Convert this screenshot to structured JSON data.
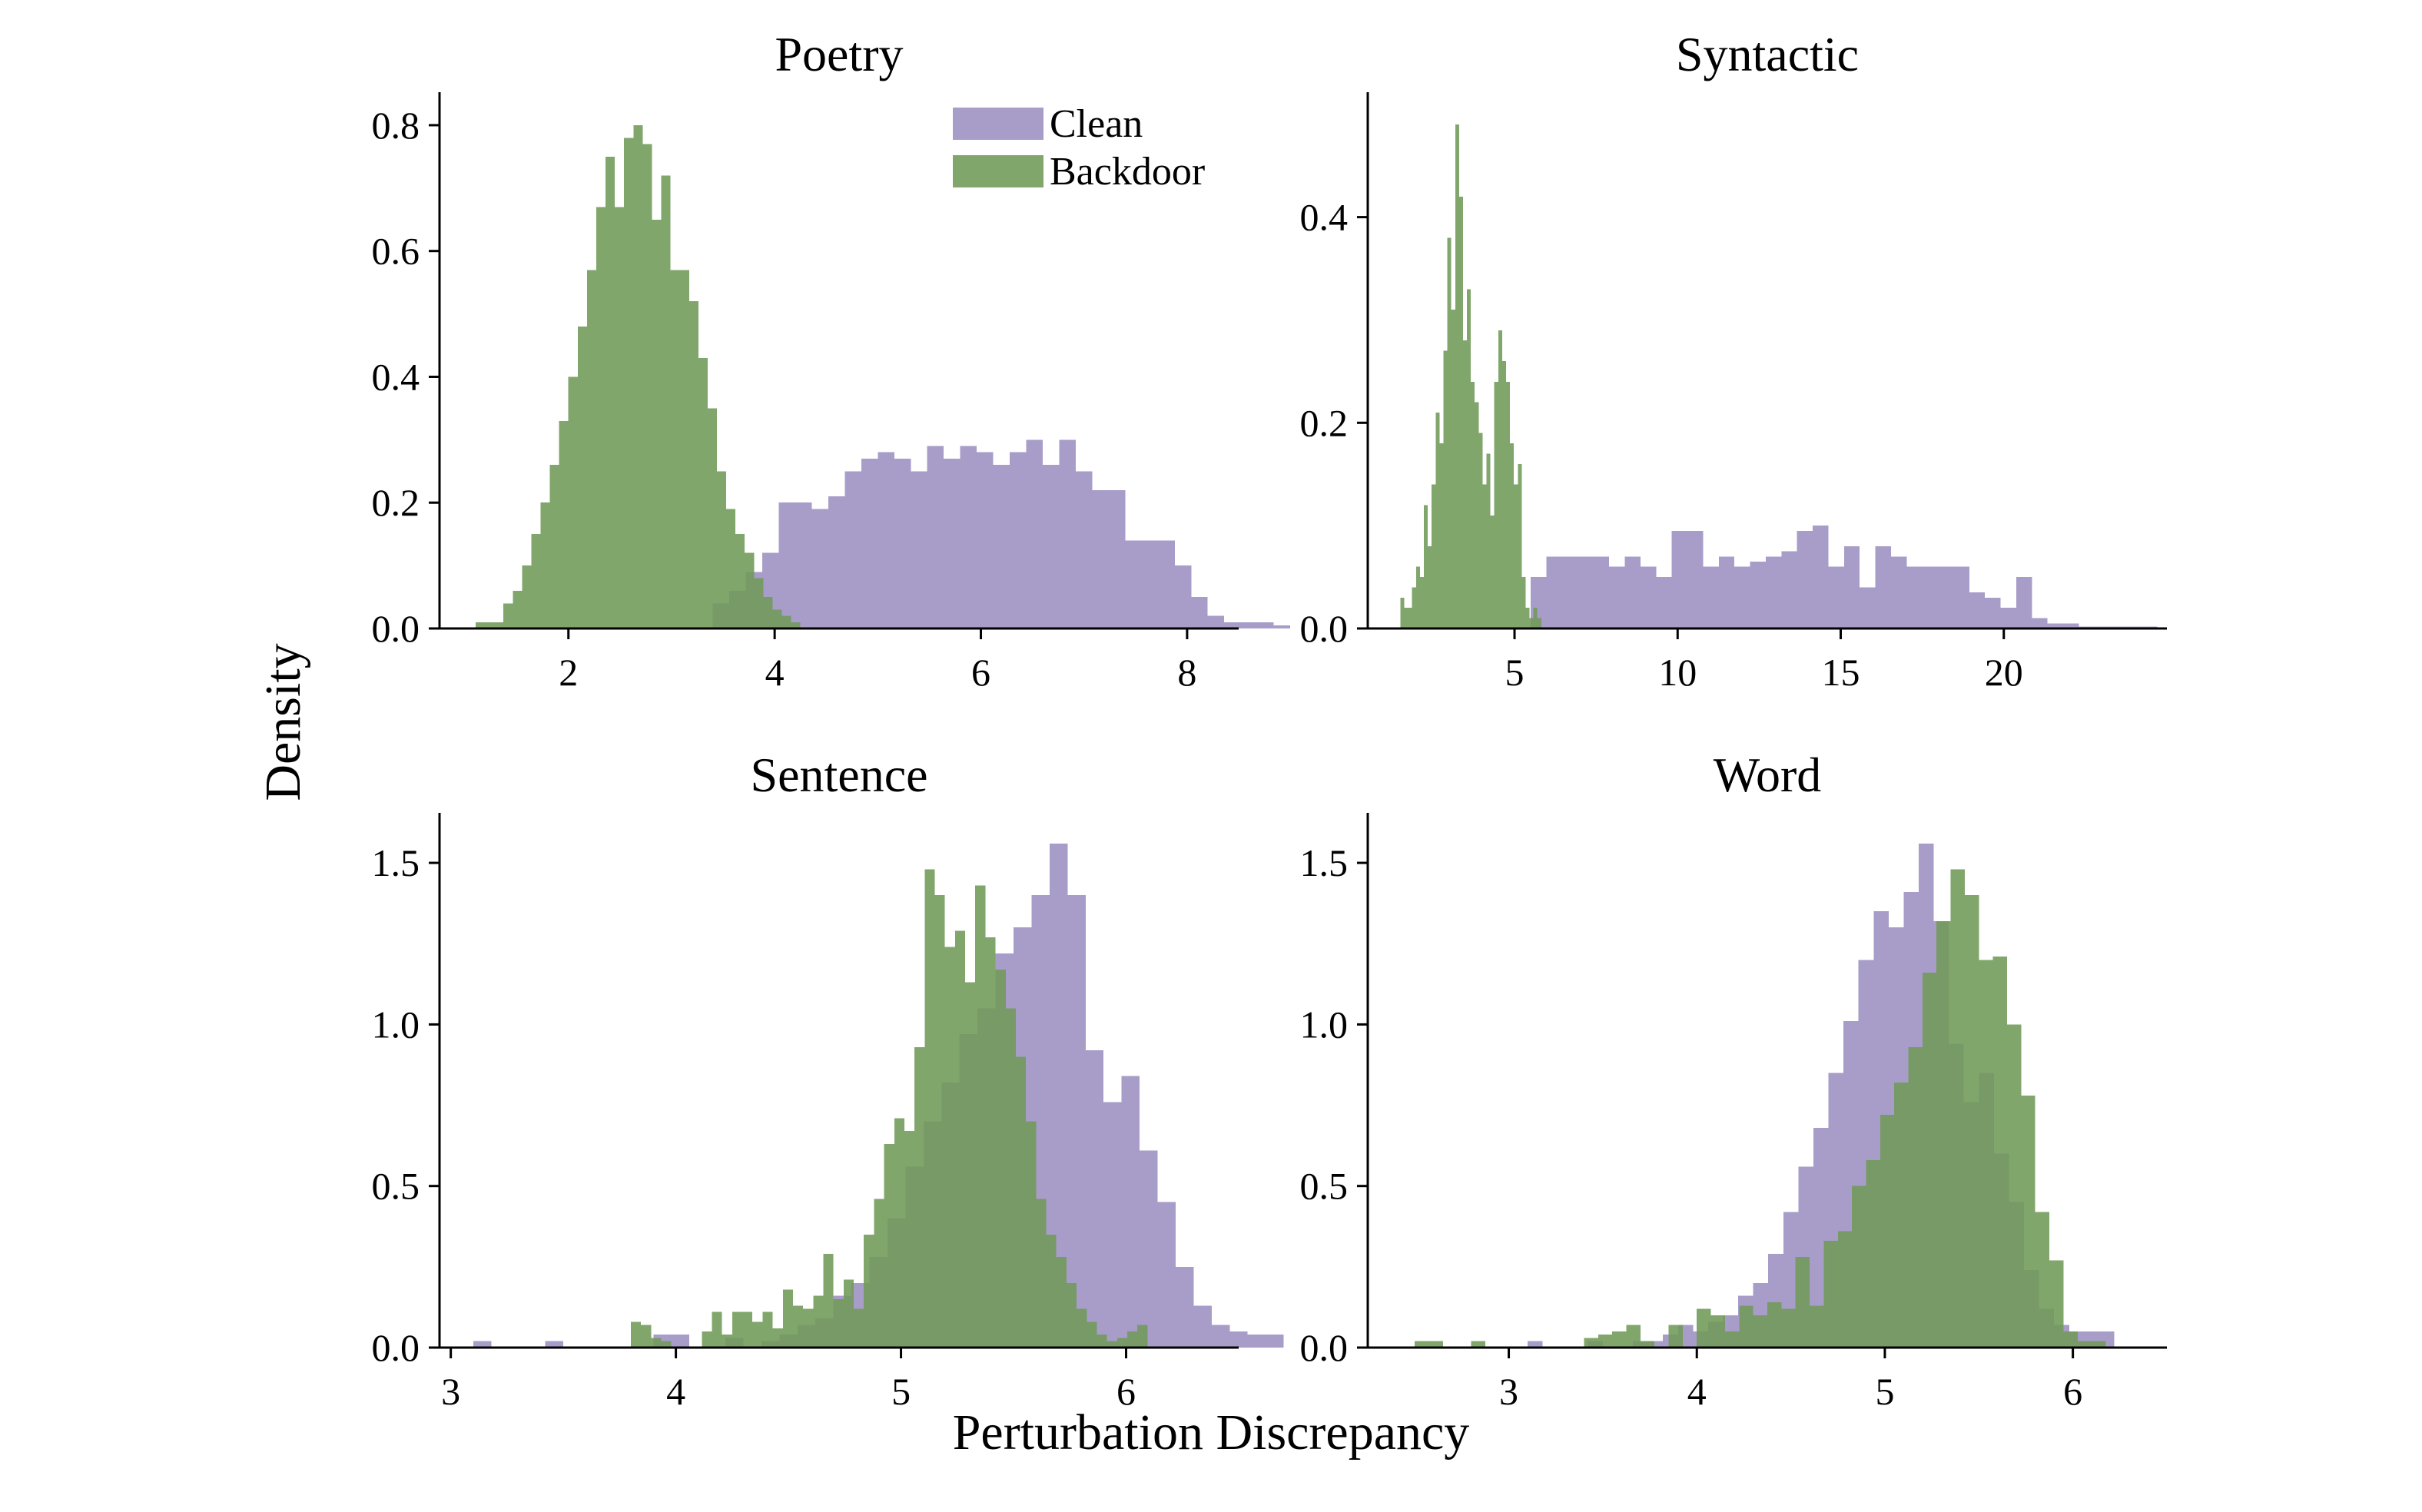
{
  "colors": {
    "clean": "#9c8fc1",
    "backdoor": "#6f9a58"
  },
  "legend": [
    {
      "label": "Clean",
      "color": "#9c8fc1"
    },
    {
      "label": "Backdoor",
      "color": "#6f9a58"
    }
  ],
  "shared_labels": {
    "ylabel": "Density",
    "xlabel": "Perturbation Discrepancy"
  },
  "chart_data": [
    {
      "type": "histogram",
      "title": "Poetry",
      "xlim": [
        0.75,
        8.5
      ],
      "ylim": [
        0,
        0.85
      ],
      "xticks": [
        "2",
        "4",
        "6",
        "8"
      ],
      "xtick_values": [
        2,
        4,
        6,
        8
      ],
      "yticks": [
        "0.0",
        "0.2",
        "0.4",
        "0.6",
        "0.8"
      ],
      "ytick_values": [
        0,
        0.2,
        0.4,
        0.6,
        0.8
      ],
      "series": [
        {
          "name": "Clean",
          "bin_start": 3.4,
          "bin_width": 0.16,
          "values": [
            0.04,
            0.06,
            0.09,
            0.12,
            0.2,
            0.2,
            0.19,
            0.21,
            0.25,
            0.27,
            0.28,
            0.27,
            0.25,
            0.29,
            0.27,
            0.29,
            0.28,
            0.26,
            0.28,
            0.3,
            0.26,
            0.3,
            0.25,
            0.22,
            0.22,
            0.14,
            0.14,
            0.14,
            0.1,
            0.05,
            0.02,
            0.01,
            0.01,
            0.01,
            0.005
          ]
        },
        {
          "name": "Backdoor",
          "bin_start": 1.1,
          "bin_width": 0.09,
          "values": [
            0.01,
            0.01,
            0.01,
            0.04,
            0.06,
            0.1,
            0.15,
            0.2,
            0.26,
            0.33,
            0.4,
            0.48,
            0.57,
            0.67,
            0.75,
            0.67,
            0.78,
            0.8,
            0.77,
            0.65,
            0.72,
            0.57,
            0.57,
            0.52,
            0.43,
            0.35,
            0.25,
            0.19,
            0.15,
            0.12,
            0.08,
            0.05,
            0.03,
            0.02,
            0.01
          ]
        }
      ]
    },
    {
      "type": "histogram",
      "title": "Syntactic",
      "xlim": [
        0.5,
        25
      ],
      "ylim": [
        0,
        0.52
      ],
      "xticks": [
        "5",
        "10",
        "15",
        "20"
      ],
      "xtick_values": [
        5,
        10,
        15,
        20
      ],
      "yticks": [
        "0.0",
        "0.2",
        "0.4"
      ],
      "ytick_values": [
        0,
        0.2,
        0.4
      ],
      "series": [
        {
          "name": "Clean",
          "bin_start": 5.5,
          "bin_width": 0.48,
          "values": [
            0.05,
            0.07,
            0.07,
            0.07,
            0.07,
            0.06,
            0.07,
            0.06,
            0.05,
            0.095,
            0.095,
            0.06,
            0.07,
            0.06,
            0.065,
            0.07,
            0.075,
            0.095,
            0.1,
            0.06,
            0.08,
            0.04,
            0.08,
            0.07,
            0.06,
            0.06,
            0.06,
            0.06,
            0.035,
            0.03,
            0.02,
            0.05,
            0.01,
            0.005,
            0.005,
            0.002,
            0.002,
            0.002,
            0.002,
            0.002
          ]
        },
        {
          "name": "Backdoor",
          "bin_start": 1.5,
          "bin_width": 0.12,
          "values": [
            0.03,
            0.02,
            0.02,
            0.04,
            0.06,
            0.05,
            0.12,
            0.08,
            0.14,
            0.21,
            0.18,
            0.27,
            0.38,
            0.31,
            0.49,
            0.42,
            0.28,
            0.33,
            0.24,
            0.22,
            0.19,
            0.14,
            0.17,
            0.11,
            0.24,
            0.29,
            0.26,
            0.24,
            0.18,
            0.14,
            0.16,
            0.05,
            0.02,
            0.01,
            0.02,
            0.01
          ]
        }
      ]
    },
    {
      "type": "histogram",
      "title": "Sentence",
      "xlim": [
        2.95,
        6.5
      ],
      "ylim": [
        0,
        1.65
      ],
      "xticks": [
        "3",
        "4",
        "5",
        "6"
      ],
      "xtick_values": [
        3,
        4,
        5,
        6
      ],
      "yticks": [
        "0.0",
        "0.5",
        "1.0",
        "1.5"
      ],
      "ytick_values": [
        0,
        0.5,
        1,
        1.5
      ],
      "series": [
        {
          "name": "Clean",
          "bin_start": 3.1,
          "bin_width": 0.08,
          "values": [
            0.02,
            0.0,
            0.0,
            0.0,
            0.02,
            0.0,
            0.0,
            0.0,
            0.0,
            0.0,
            0.04,
            0.04,
            0.0,
            0.0,
            0.03,
            0.0,
            0.02,
            0.04,
            0.07,
            0.09,
            0.16,
            0.2,
            0.28,
            0.4,
            0.56,
            0.7,
            0.82,
            0.97,
            1.05,
            1.22,
            1.3,
            1.4,
            1.56,
            1.4,
            0.92,
            0.76,
            0.84,
            0.61,
            0.45,
            0.25,
            0.13,
            0.07,
            0.05,
            0.04,
            0.04
          ]
        },
        {
          "name": "Backdoor",
          "bin_start": 3.8,
          "bin_width": 0.045,
          "values": [
            0.08,
            0.07,
            0.03,
            0.02,
            0.0,
            0.0,
            0.0,
            0.05,
            0.11,
            0.04,
            0.11,
            0.11,
            0.08,
            0.11,
            0.06,
            0.18,
            0.13,
            0.12,
            0.16,
            0.29,
            0.15,
            0.21,
            0.12,
            0.35,
            0.46,
            0.63,
            0.71,
            0.67,
            0.93,
            1.48,
            1.4,
            1.24,
            1.29,
            1.13,
            1.43,
            1.27,
            1.17,
            1.05,
            0.9,
            0.7,
            0.46,
            0.35,
            0.28,
            0.2,
            0.12,
            0.08,
            0.04,
            0.02,
            0.03,
            0.05,
            0.07
          ]
        }
      ]
    },
    {
      "type": "histogram",
      "title": "Word",
      "xlim": [
        2.25,
        6.5
      ],
      "ylim": [
        0,
        1.65
      ],
      "xticks": [
        "3",
        "4",
        "5",
        "6"
      ],
      "xtick_values": [
        3,
        4,
        5,
        6
      ],
      "yticks": [
        "0.0",
        "0.5",
        "1.0",
        "1.5"
      ],
      "ytick_values": [
        0,
        0.5,
        1,
        1.5
      ],
      "series": [
        {
          "name": "Clean",
          "bin_start": 3.1,
          "bin_width": 0.08,
          "values": [
            0.02,
            0.0,
            0.0,
            0.0,
            0.02,
            0.0,
            0.0,
            0.02,
            0.02,
            0.04,
            0.07,
            0.05,
            0.08,
            0.1,
            0.16,
            0.2,
            0.29,
            0.42,
            0.56,
            0.68,
            0.85,
            1.01,
            1.2,
            1.35,
            1.3,
            1.41,
            1.56,
            1.32,
            0.94,
            0.76,
            0.85,
            0.6,
            0.45,
            0.24,
            0.12,
            0.07,
            0.05,
            0.05,
            0.05
          ]
        },
        {
          "name": "Backdoor",
          "bin_start": 2.5,
          "bin_width": 0.075,
          "values": [
            0.02,
            0.02,
            0.0,
            0.0,
            0.02,
            0.0,
            0.0,
            0.0,
            0.0,
            0.0,
            0.0,
            0.0,
            0.03,
            0.04,
            0.05,
            0.07,
            0.02,
            0.0,
            0.07,
            0.0,
            0.12,
            0.1,
            0.05,
            0.13,
            0.1,
            0.14,
            0.12,
            0.28,
            0.13,
            0.33,
            0.36,
            0.5,
            0.58,
            0.72,
            0.82,
            0.93,
            1.16,
            1.32,
            1.48,
            1.4,
            1.2,
            1.21,
            1.0,
            0.78,
            0.42,
            0.27,
            0.05,
            0.02,
            0.02
          ]
        }
      ]
    }
  ]
}
